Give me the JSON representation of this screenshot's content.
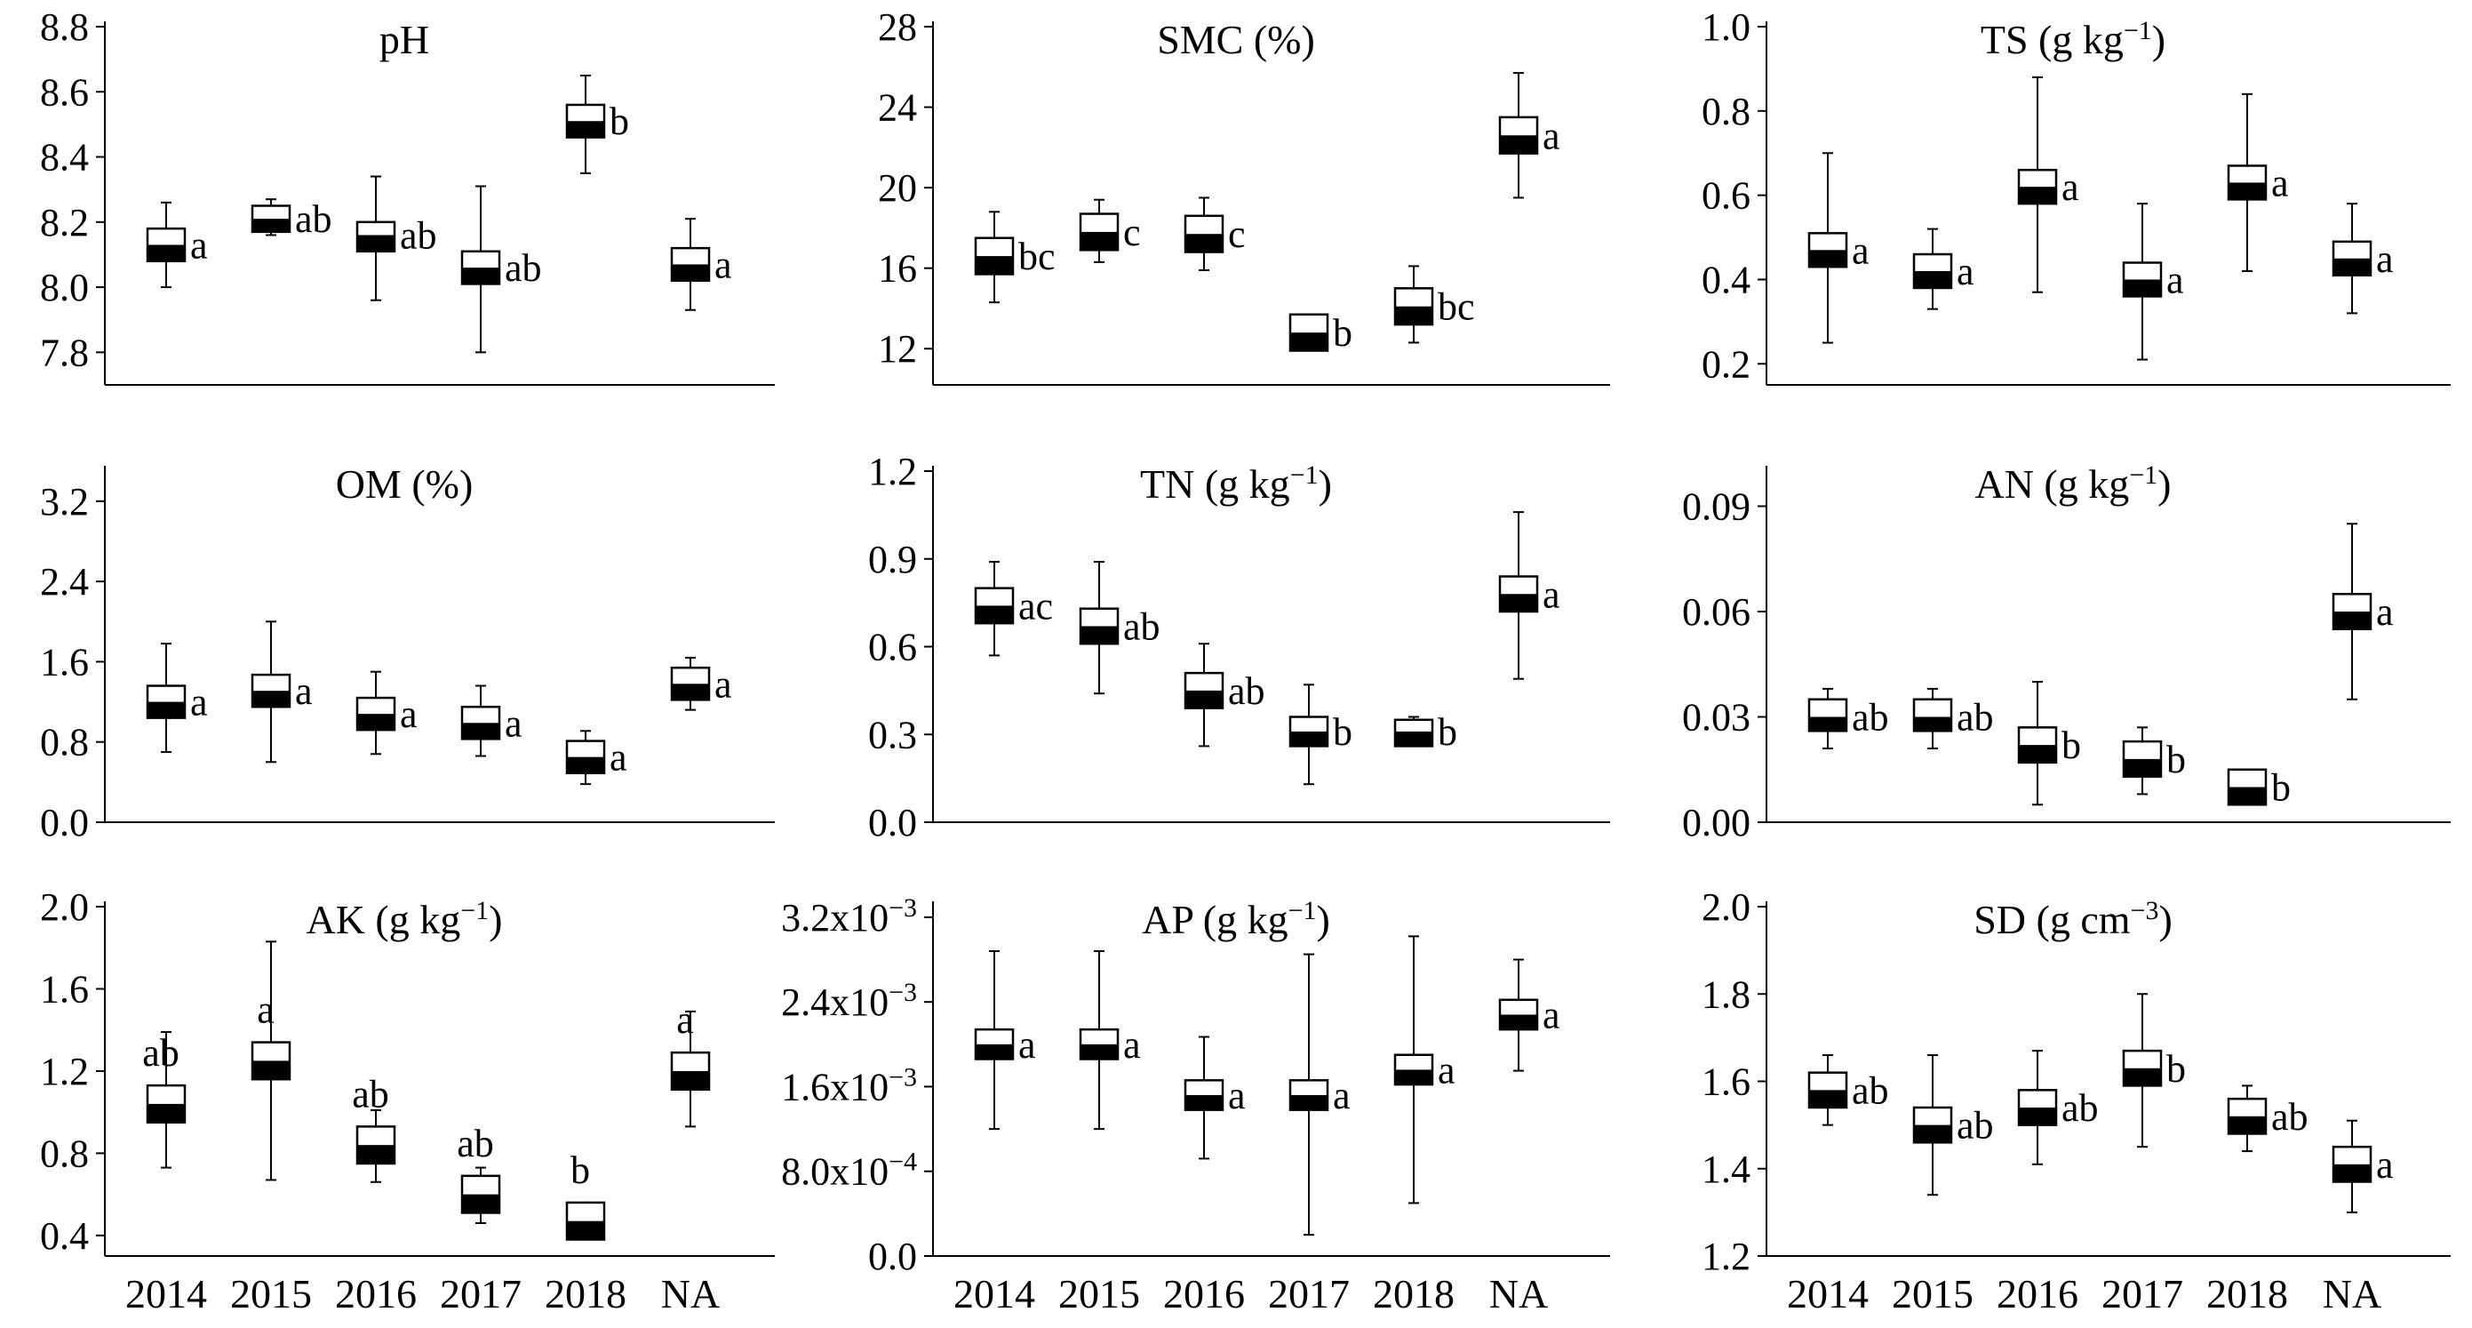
{
  "chart_data": [
    {
      "type": "box",
      "title": "pH",
      "categories": [
        "2014",
        "2015",
        "2016",
        "2017",
        "2018",
        "NA"
      ],
      "ylim": [
        7.7,
        8.8
      ],
      "yticks": [
        "7.8",
        "8.0",
        "8.2",
        "8.4",
        "8.6",
        "8.8"
      ],
      "ytick_values": [
        7.8,
        8.0,
        8.2,
        8.4,
        8.6,
        8.8
      ],
      "boxes": [
        {
          "q1": 8.08,
          "median": 8.13,
          "q3": 8.18,
          "min": 8.0,
          "max": 8.26,
          "label": "a"
        },
        {
          "q1": 8.17,
          "median": 8.21,
          "q3": 8.25,
          "min": 8.16,
          "max": 8.27,
          "label": "ab"
        },
        {
          "q1": 8.11,
          "median": 8.16,
          "q3": 8.2,
          "min": 7.96,
          "max": 8.34,
          "label": "ab"
        },
        {
          "q1": 8.01,
          "median": 8.06,
          "q3": 8.11,
          "min": 7.8,
          "max": 8.31,
          "label": "ab"
        },
        {
          "q1": 8.46,
          "median": 8.51,
          "q3": 8.56,
          "min": 8.35,
          "max": 8.65,
          "label": "b"
        },
        {
          "q1": 8.02,
          "median": 8.07,
          "q3": 8.12,
          "min": 7.93,
          "max": 8.21,
          "label": "a"
        }
      ]
    },
    {
      "type": "box",
      "title": "SMC (%)",
      "categories": [
        "2014",
        "2015",
        "2016",
        "2017",
        "2018",
        "NA"
      ],
      "ylim": [
        10.2,
        28
      ],
      "yticks": [
        "12",
        "16",
        "20",
        "24",
        "28"
      ],
      "ytick_values": [
        12,
        16,
        20,
        24,
        28
      ],
      "boxes": [
        {
          "q1": 15.7,
          "median": 16.6,
          "q3": 17.5,
          "min": 14.3,
          "max": 18.8,
          "label": "bc"
        },
        {
          "q1": 16.9,
          "median": 17.8,
          "q3": 18.7,
          "min": 16.3,
          "max": 19.4,
          "label": "c"
        },
        {
          "q1": 16.8,
          "median": 17.7,
          "q3": 18.6,
          "min": 15.9,
          "max": 19.5,
          "label": "c"
        },
        {
          "q1": 11.9,
          "median": 12.8,
          "q3": 13.7,
          "min": 11.9,
          "max": 13.7,
          "label": "b"
        },
        {
          "q1": 13.2,
          "median": 14.1,
          "q3": 15.0,
          "min": 12.3,
          "max": 16.1,
          "label": "bc"
        },
        {
          "q1": 21.7,
          "median": 22.6,
          "q3": 23.5,
          "min": 19.5,
          "max": 25.7,
          "label": "a"
        }
      ]
    },
    {
      "type": "box",
      "title": "TS (g kg⁻¹)",
      "categories": [
        "2014",
        "2015",
        "2016",
        "2017",
        "2018",
        "NA"
      ],
      "ylim": [
        0.15,
        1.0
      ],
      "yticks": [
        "0.2",
        "0.4",
        "0.6",
        "0.8",
        "1.0"
      ],
      "ytick_values": [
        0.2,
        0.4,
        0.6,
        0.8,
        1.0
      ],
      "boxes": [
        {
          "q1": 0.43,
          "median": 0.47,
          "q3": 0.51,
          "min": 0.25,
          "max": 0.7,
          "label": "a"
        },
        {
          "q1": 0.38,
          "median": 0.42,
          "q3": 0.46,
          "min": 0.33,
          "max": 0.52,
          "label": "a"
        },
        {
          "q1": 0.58,
          "median": 0.62,
          "q3": 0.66,
          "min": 0.37,
          "max": 0.88,
          "label": "a"
        },
        {
          "q1": 0.36,
          "median": 0.4,
          "q3": 0.44,
          "min": 0.21,
          "max": 0.58,
          "label": "a"
        },
        {
          "q1": 0.59,
          "median": 0.63,
          "q3": 0.67,
          "min": 0.42,
          "max": 0.84,
          "label": "a"
        },
        {
          "q1": 0.41,
          "median": 0.45,
          "q3": 0.49,
          "min": 0.32,
          "max": 0.58,
          "label": "a"
        }
      ]
    },
    {
      "type": "box",
      "title": "OM (%)",
      "categories": [
        "2014",
        "2015",
        "2016",
        "2017",
        "2018",
        "NA"
      ],
      "ylim": [
        0,
        3.5
      ],
      "yticks": [
        "0.0",
        "0.8",
        "1.6",
        "2.4",
        "3.2"
      ],
      "ytick_values": [
        0.0,
        0.8,
        1.6,
        2.4,
        3.2
      ],
      "boxes": [
        {
          "q1": 1.04,
          "median": 1.2,
          "q3": 1.36,
          "min": 0.7,
          "max": 1.78,
          "label": "a"
        },
        {
          "q1": 1.15,
          "median": 1.31,
          "q3": 1.47,
          "min": 0.6,
          "max": 2.0,
          "label": "a"
        },
        {
          "q1": 0.92,
          "median": 1.08,
          "q3": 1.24,
          "min": 0.68,
          "max": 1.5,
          "label": "a"
        },
        {
          "q1": 0.83,
          "median": 0.99,
          "q3": 1.15,
          "min": 0.66,
          "max": 1.36,
          "label": "a"
        },
        {
          "q1": 0.49,
          "median": 0.65,
          "q3": 0.81,
          "min": 0.38,
          "max": 0.91,
          "label": "a"
        },
        {
          "q1": 1.22,
          "median": 1.38,
          "q3": 1.54,
          "min": 1.12,
          "max": 1.64,
          "label": "a"
        }
      ]
    },
    {
      "type": "box",
      "title": "TN (g kg⁻¹)",
      "categories": [
        "2014",
        "2015",
        "2016",
        "2017",
        "2018",
        "NA"
      ],
      "ylim": [
        0,
        1.2
      ],
      "yticks": [
        "0.0",
        "0.3",
        "0.6",
        "0.9",
        "1.2"
      ],
      "ytick_values": [
        0.0,
        0.3,
        0.6,
        0.9,
        1.2
      ],
      "boxes": [
        {
          "q1": 0.68,
          "median": 0.74,
          "q3": 0.8,
          "min": 0.57,
          "max": 0.89,
          "label": "ac"
        },
        {
          "q1": 0.61,
          "median": 0.67,
          "q3": 0.73,
          "min": 0.44,
          "max": 0.89,
          "label": "ab"
        },
        {
          "q1": 0.39,
          "median": 0.45,
          "q3": 0.51,
          "min": 0.26,
          "max": 0.61,
          "label": "ab"
        },
        {
          "q1": 0.26,
          "median": 0.31,
          "q3": 0.36,
          "min": 0.13,
          "max": 0.47,
          "label": "b"
        },
        {
          "q1": 0.26,
          "median": 0.31,
          "q3": 0.35,
          "min": 0.26,
          "max": 0.36,
          "label": "b"
        },
        {
          "q1": 0.72,
          "median": 0.78,
          "q3": 0.84,
          "min": 0.49,
          "max": 1.06,
          "label": "a"
        }
      ]
    },
    {
      "type": "box",
      "title": "AN (g kg⁻¹)",
      "categories": [
        "2014",
        "2015",
        "2016",
        "2017",
        "2018",
        "NA"
      ],
      "ylim": [
        0,
        0.1
      ],
      "yticks": [
        "0.00",
        "0.03",
        "0.06",
        "0.09"
      ],
      "ytick_values": [
        0.0,
        0.03,
        0.06,
        0.09
      ],
      "boxes": [
        {
          "q1": 0.026,
          "median": 0.03,
          "q3": 0.035,
          "min": 0.021,
          "max": 0.038,
          "label": "ab"
        },
        {
          "q1": 0.026,
          "median": 0.03,
          "q3": 0.035,
          "min": 0.021,
          "max": 0.038,
          "label": "ab"
        },
        {
          "q1": 0.017,
          "median": 0.022,
          "q3": 0.027,
          "min": 0.005,
          "max": 0.04,
          "label": "b"
        },
        {
          "q1": 0.013,
          "median": 0.018,
          "q3": 0.023,
          "min": 0.008,
          "max": 0.027,
          "label": "b"
        },
        {
          "q1": 0.005,
          "median": 0.01,
          "q3": 0.015,
          "min": 0.005,
          "max": 0.015,
          "label": "b"
        },
        {
          "q1": 0.055,
          "median": 0.06,
          "q3": 0.065,
          "min": 0.035,
          "max": 0.085,
          "label": "a"
        }
      ]
    },
    {
      "type": "box",
      "title": "AK (g kg⁻¹)",
      "categories": [
        "2014",
        "2015",
        "2016",
        "2017",
        "2018",
        "NA"
      ],
      "ylim": [
        0.3,
        2.0
      ],
      "yticks": [
        "0.4",
        "0.8",
        "1.2",
        "1.6",
        "2.0"
      ],
      "ytick_values": [
        0.4,
        0.8,
        1.2,
        1.6,
        2.0
      ],
      "boxes": [
        {
          "q1": 0.95,
          "median": 1.04,
          "q3": 1.13,
          "min": 0.73,
          "max": 1.39,
          "label": "ab"
        },
        {
          "q1": 1.16,
          "median": 1.25,
          "q3": 1.34,
          "min": 0.67,
          "max": 1.83,
          "label": "a"
        },
        {
          "q1": 0.75,
          "median": 0.84,
          "q3": 0.93,
          "min": 0.66,
          "max": 1.01,
          "label": "ab"
        },
        {
          "q1": 0.51,
          "median": 0.6,
          "q3": 0.69,
          "min": 0.46,
          "max": 0.73,
          "label": "ab"
        },
        {
          "q1": 0.38,
          "median": 0.47,
          "q3": 0.56,
          "min": 0.38,
          "max": 0.56,
          "label": "b"
        },
        {
          "q1": 1.11,
          "median": 1.2,
          "q3": 1.29,
          "min": 0.93,
          "max": 1.49,
          "label": "a"
        }
      ]
    },
    {
      "type": "box",
      "title": "AP (g kg⁻¹)",
      "categories": [
        "2014",
        "2015",
        "2016",
        "2017",
        "2018",
        "NA"
      ],
      "ylim": [
        0,
        0.0033
      ],
      "yticks": [
        "0.0",
        "8.0x10⁻⁴",
        "1.6x10⁻³",
        "2.4x10⁻³",
        "3.2x10⁻³"
      ],
      "ytick_values": [
        0.0,
        0.0008,
        0.0016,
        0.0024,
        0.0032
      ],
      "boxes": [
        {
          "q1": 0.00186,
          "median": 0.002,
          "q3": 0.00214,
          "min": 0.0012,
          "max": 0.00288,
          "label": "a"
        },
        {
          "q1": 0.00186,
          "median": 0.002,
          "q3": 0.00214,
          "min": 0.0012,
          "max": 0.00288,
          "label": "a"
        },
        {
          "q1": 0.00138,
          "median": 0.00152,
          "q3": 0.00166,
          "min": 0.00092,
          "max": 0.00207,
          "label": "a"
        },
        {
          "q1": 0.00138,
          "median": 0.00152,
          "q3": 0.00166,
          "min": 0.0002,
          "max": 0.00285,
          "label": "a"
        },
        {
          "q1": 0.00162,
          "median": 0.00176,
          "q3": 0.0019,
          "min": 0.0005,
          "max": 0.00302,
          "label": "a"
        },
        {
          "q1": 0.00214,
          "median": 0.00228,
          "q3": 0.00242,
          "min": 0.00175,
          "max": 0.0028,
          "label": "a"
        }
      ]
    },
    {
      "type": "box",
      "title": "SD (g cm⁻³)",
      "categories": [
        "2014",
        "2015",
        "2016",
        "2017",
        "2018",
        "NA"
      ],
      "ylim": [
        1.2,
        2.0
      ],
      "yticks": [
        "1.2",
        "1.4",
        "1.6",
        "1.8",
        "2.0"
      ],
      "ytick_values": [
        1.2,
        1.4,
        1.6,
        1.8,
        2.0
      ],
      "boxes": [
        {
          "q1": 1.54,
          "median": 1.58,
          "q3": 1.62,
          "min": 1.5,
          "max": 1.66,
          "label": "ab"
        },
        {
          "q1": 1.46,
          "median": 1.5,
          "q3": 1.54,
          "min": 1.34,
          "max": 1.66,
          "label": "ab"
        },
        {
          "q1": 1.5,
          "median": 1.54,
          "q3": 1.58,
          "min": 1.41,
          "max": 1.67,
          "label": "ab"
        },
        {
          "q1": 1.59,
          "median": 1.63,
          "q3": 1.67,
          "min": 1.45,
          "max": 1.8,
          "label": "b"
        },
        {
          "q1": 1.48,
          "median": 1.52,
          "q3": 1.56,
          "min": 1.44,
          "max": 1.59,
          "label": "ab"
        },
        {
          "q1": 1.37,
          "median": 1.41,
          "q3": 1.45,
          "min": 1.3,
          "max": 1.51,
          "label": "a"
        }
      ]
    }
  ]
}
